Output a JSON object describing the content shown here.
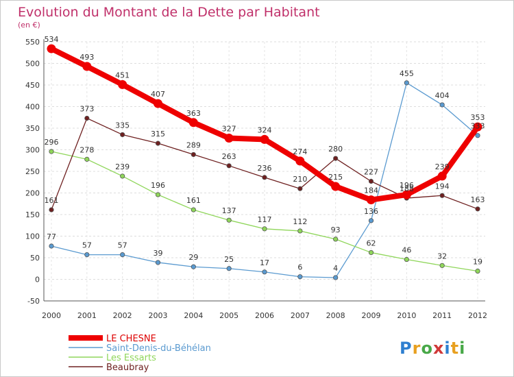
{
  "chart_data": {
    "type": "line",
    "title": "Evolution du Montant de la Dette par Habitant",
    "subtitle": "(en €)",
    "xlabel": "",
    "ylabel": "",
    "categories": [
      "2000",
      "2001",
      "2002",
      "2003",
      "2004",
      "2005",
      "2006",
      "2007",
      "2008",
      "2009",
      "2010",
      "2011",
      "2012"
    ],
    "ylim": [
      -50,
      550
    ],
    "yticks": [
      -50,
      0,
      50,
      100,
      150,
      200,
      250,
      300,
      350,
      400,
      450,
      500,
      550
    ],
    "grid": true,
    "legend_position": "bottom-left",
    "series": [
      {
        "name": "LE CHESNE",
        "color": "#ee0000",
        "values": [
          534,
          493,
          451,
          407,
          363,
          327,
          324,
          274,
          215,
          184,
          196,
          239,
          353
        ]
      },
      {
        "name": "Saint-Denis-du-Béhélan",
        "color": "#5a9ad0",
        "values": [
          77,
          57,
          57,
          39,
          29,
          25,
          17,
          6,
          4,
          136,
          455,
          404,
          333
        ]
      },
      {
        "name": "Les Essarts",
        "color": "#8fd65a",
        "values": [
          296,
          278,
          239,
          196,
          161,
          137,
          117,
          112,
          93,
          62,
          46,
          32,
          19
        ]
      },
      {
        "name": "Beaubray",
        "color": "#6e2020",
        "values": [
          161,
          373,
          335,
          315,
          289,
          263,
          236,
          210,
          280,
          227,
          188,
          194,
          163
        ]
      }
    ]
  },
  "logo": {
    "text": "Proxiti"
  }
}
